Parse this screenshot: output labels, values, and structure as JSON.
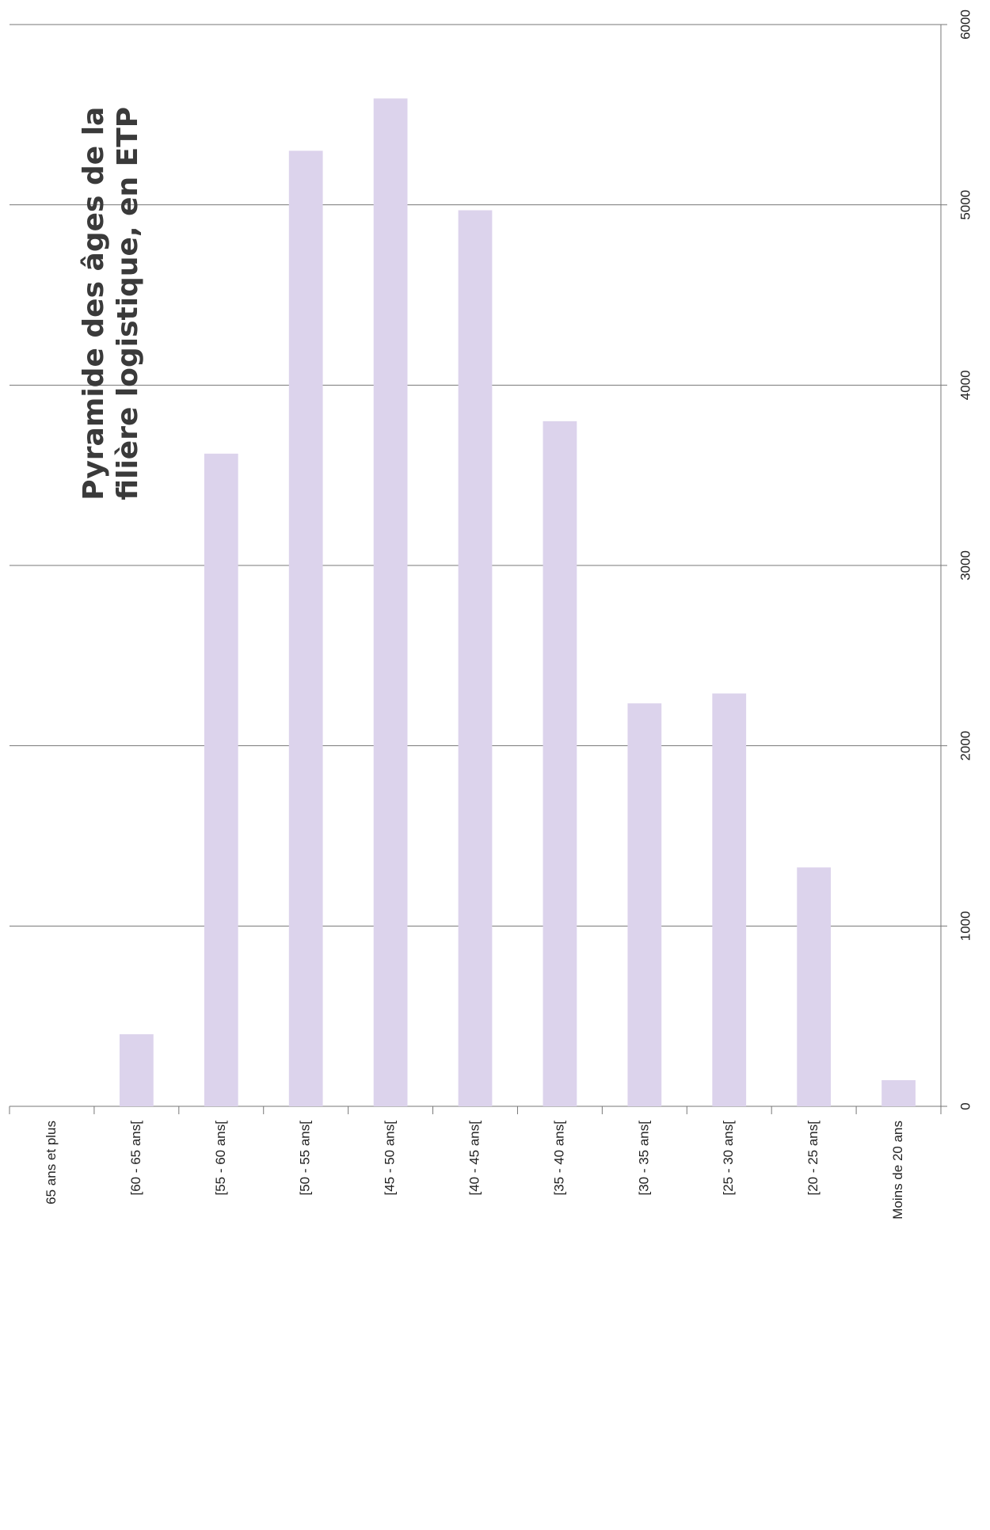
{
  "chart_data": {
    "type": "bar",
    "title": "Pyramide des âges de la filière logistique, en ETP",
    "categories": [
      "65 ans et plus",
      "[60 - 65 ans[",
      "[55 - 60 ans[",
      "[50 - 55 ans[",
      "[45 - 50 ans[",
      "[40 - 45 ans[",
      "[35 - 40 ans[",
      "[30 - 35 ans[",
      "[25 - 30 ans[",
      "[20 - 25 ans[",
      "Moins de 20 ans"
    ],
    "values": [
      0,
      400,
      3620,
      5300,
      5590,
      4970,
      3800,
      2235,
      2290,
      1325,
      145
    ],
    "color": "#dcd3ec",
    "ylim": [
      0,
      6000
    ],
    "yticks": [
      0,
      1000,
      2000,
      3000,
      4000,
      5000,
      6000
    ],
    "grid": true
  }
}
